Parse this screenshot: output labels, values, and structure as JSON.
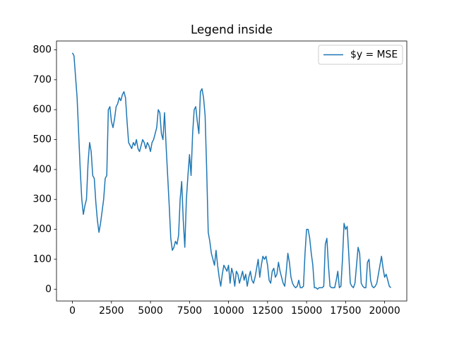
{
  "chart_data": {
    "type": "line",
    "title": "Legend inside",
    "x": [
      0,
      100,
      200,
      300,
      400,
      500,
      600,
      700,
      800,
      900,
      1000,
      1100,
      1200,
      1300,
      1400,
      1500,
      1600,
      1700,
      1800,
      1900,
      2000,
      2100,
      2200,
      2300,
      2400,
      2500,
      2600,
      2700,
      2800,
      2900,
      3000,
      3100,
      3200,
      3300,
      3400,
      3500,
      3600,
      3700,
      3800,
      3900,
      4000,
      4100,
      4200,
      4300,
      4400,
      4500,
      4600,
      4700,
      4800,
      4900,
      5000,
      5100,
      5200,
      5300,
      5400,
      5500,
      5600,
      5700,
      5800,
      5900,
      6000,
      6100,
      6200,
      6300,
      6400,
      6500,
      6600,
      6700,
      6800,
      6900,
      7000,
      7100,
      7200,
      7300,
      7400,
      7500,
      7600,
      7700,
      7800,
      7900,
      8000,
      8100,
      8200,
      8300,
      8400,
      8500,
      8600,
      8700,
      8800,
      8900,
      9000,
      9100,
      9200,
      9300,
      9400,
      9500,
      9600,
      9700,
      9800,
      9900,
      10000,
      10100,
      10200,
      10300,
      10400,
      10500,
      10600,
      10700,
      10800,
      10900,
      11000,
      11100,
      11200,
      11300,
      11400,
      11500,
      11600,
      11700,
      11800,
      11900,
      12000,
      12100,
      12200,
      12300,
      12400,
      12500,
      12600,
      12700,
      12800,
      12900,
      13000,
      13100,
      13200,
      13300,
      13400,
      13500,
      13600,
      13700,
      13800,
      13900,
      14000,
      14100,
      14200,
      14300,
      14400,
      14500,
      14600,
      14700,
      14800,
      14900,
      15000,
      15100,
      15200,
      15300,
      15400,
      15500,
      15600,
      15700,
      15800,
      15900,
      16000,
      16100,
      16200,
      16300,
      16400,
      16500,
      16600,
      16700,
      16800,
      16900,
      17000,
      17100,
      17200,
      17300,
      17400,
      17500,
      17600,
      17700,
      17800,
      17900,
      18000,
      18100,
      18200,
      18300,
      18400,
      18500,
      18600,
      18700,
      18800,
      18900,
      19000,
      19100,
      19200,
      19300,
      19400,
      19500,
      19600,
      19700,
      19800,
      19900,
      20000,
      20100,
      20200,
      20300,
      20400
    ],
    "series": [
      {
        "name": "$y = MSE",
        "color": "#1f77b4",
        "values": [
          790,
          780,
          710,
          640,
          520,
          400,
          300,
          250,
          280,
          300,
          420,
          490,
          460,
          380,
          370,
          290,
          230,
          190,
          220,
          260,
          300,
          370,
          380,
          600,
          610,
          560,
          540,
          570,
          610,
          620,
          640,
          630,
          650,
          660,
          640,
          560,
          490,
          480,
          470,
          490,
          480,
          500,
          470,
          460,
          480,
          500,
          490,
          470,
          490,
          480,
          460,
          490,
          500,
          520,
          540,
          600,
          590,
          520,
          500,
          590,
          480,
          380,
          280,
          170,
          130,
          140,
          160,
          150,
          180,
          300,
          360,
          230,
          140,
          300,
          380,
          450,
          380,
          520,
          600,
          610,
          560,
          520,
          660,
          670,
          640,
          580,
          400,
          190,
          160,
          120,
          100,
          80,
          130,
          80,
          40,
          10,
          50,
          80,
          70,
          60,
          80,
          20,
          70,
          50,
          10,
          60,
          50,
          20,
          40,
          60,
          30,
          50,
          10,
          40,
          60,
          30,
          20,
          40,
          70,
          100,
          40,
          80,
          110,
          100,
          110,
          80,
          30,
          20,
          60,
          70,
          40,
          50,
          90,
          60,
          40,
          20,
          10,
          60,
          120,
          90,
          40,
          20,
          10,
          5,
          10,
          30,
          5,
          5,
          10,
          120,
          200,
          200,
          170,
          120,
          80,
          5,
          5,
          0,
          5,
          5,
          5,
          10,
          150,
          170,
          80,
          10,
          5,
          5,
          5,
          30,
          60,
          5,
          10,
          100,
          220,
          200,
          210,
          120,
          20,
          10,
          5,
          20,
          80,
          140,
          120,
          20,
          10,
          5,
          5,
          90,
          100,
          30,
          10,
          5,
          10,
          20,
          50,
          80,
          110,
          70,
          40,
          50,
          30,
          10,
          5
        ]
      }
    ],
    "xlim": [
      -1020,
      21420
    ],
    "ylim": [
      -39.5,
      829.5
    ],
    "xticks": [
      0,
      2500,
      5000,
      7500,
      10000,
      12500,
      15000,
      17500,
      20000
    ],
    "yticks": [
      0,
      100,
      200,
      300,
      400,
      500,
      600,
      700,
      800
    ],
    "legend": "upper right"
  }
}
